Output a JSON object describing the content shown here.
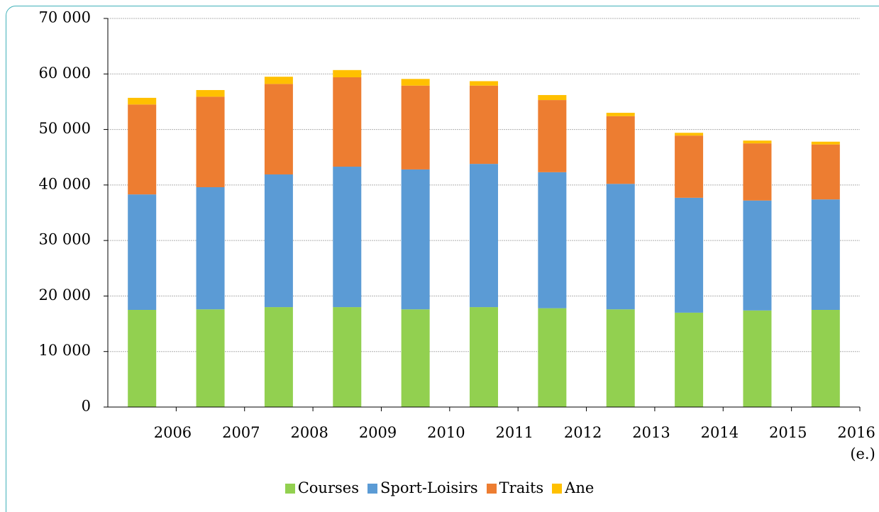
{
  "chart_data": {
    "type": "stacked_bar",
    "categories": [
      "2006",
      "2007",
      "2008",
      "2009",
      "2010",
      "2011",
      "2012",
      "2013",
      "2014",
      "2015",
      "2016\n(e.)"
    ],
    "series": [
      {
        "name": "Courses",
        "color": "#92d050",
        "values": [
          17500,
          17600,
          18000,
          18000,
          17600,
          18000,
          17800,
          17600,
          17000,
          17400,
          17500
        ]
      },
      {
        "name": "Sport-Loisirs",
        "color": "#5b9bd5",
        "values": [
          20800,
          22000,
          23900,
          25300,
          25200,
          25800,
          24500,
          22600,
          20700,
          19800,
          19900
        ]
      },
      {
        "name": "Traits",
        "color": "#ed7d31",
        "values": [
          16200,
          16300,
          16300,
          16100,
          15100,
          14100,
          13000,
          12200,
          11200,
          10300,
          9900
        ]
      },
      {
        "name": "Ane",
        "color": "#ffc000",
        "values": [
          1200,
          1200,
          1300,
          1300,
          1200,
          800,
          900,
          600,
          500,
          500,
          500
        ]
      }
    ],
    "ylim": [
      0,
      70000
    ],
    "yticks": [
      0,
      {
        "value": 10000,
        "label": "10 000"
      },
      {
        "value": 20000,
        "label": "20 000"
      },
      {
        "value": 30000,
        "label": "30 000"
      },
      {
        "value": 40000,
        "label": "40 000"
      },
      {
        "value": 50000,
        "label": "50 000"
      },
      {
        "value": 60000,
        "label": "60 000"
      },
      {
        "value": 70000,
        "label": "70 000"
      }
    ],
    "grid": true
  }
}
